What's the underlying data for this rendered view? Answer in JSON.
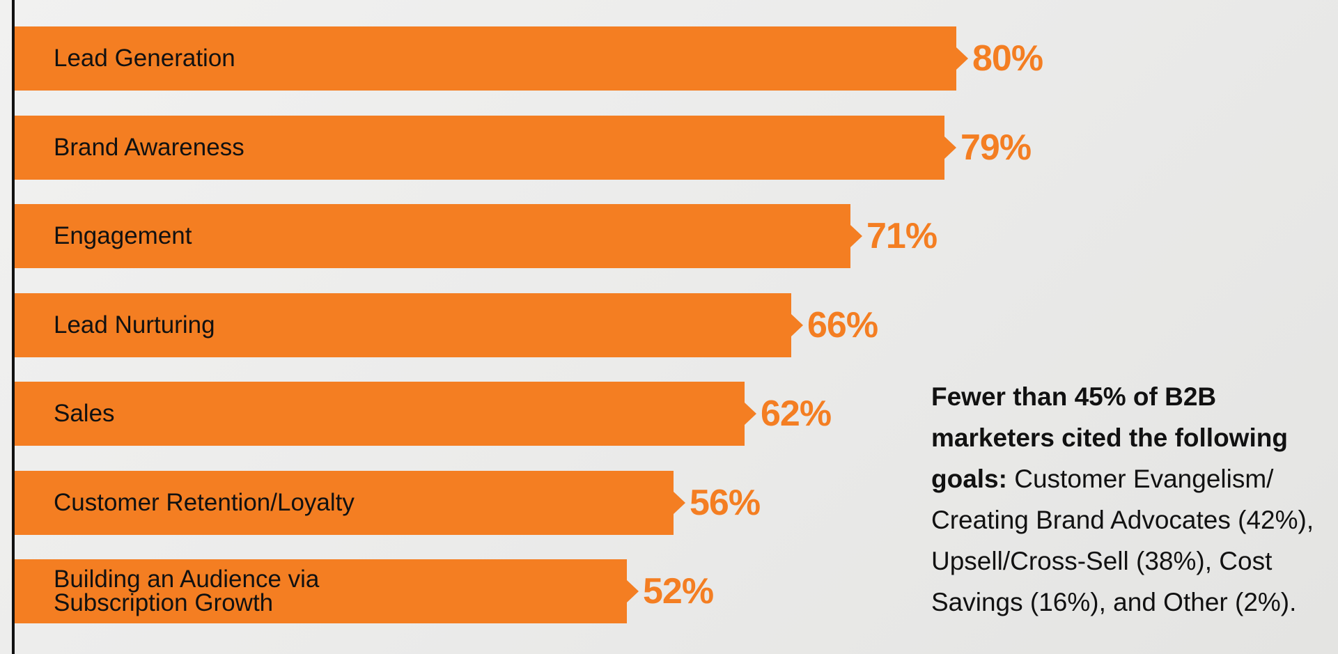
{
  "chart_data": {
    "type": "bar",
    "orientation": "horizontal",
    "unit": "%",
    "categories": [
      "Lead Generation",
      "Brand Awareness",
      "Engagement",
      "Lead Nurturing",
      "Sales",
      "Customer Retention/Loyalty",
      "Building an Audience via\nSubscription Growth"
    ],
    "values": [
      80,
      79,
      71,
      66,
      62,
      56,
      52
    ],
    "value_labels": [
      "80%",
      "79%",
      "71%",
      "66%",
      "62%",
      "56%",
      "52%"
    ],
    "bar_color": "#f47e22",
    "value_label_color": "#f47e22",
    "grid": false,
    "legend": "none"
  },
  "note": {
    "lead": "Fewer than 45% of B2B marketers cited the following goals:",
    "body": " Customer Evangelism/ Creating Brand Advocates (42%), Upsell/Cross-Sell (38%), Cost Savings (16%), and Other (2%)."
  }
}
